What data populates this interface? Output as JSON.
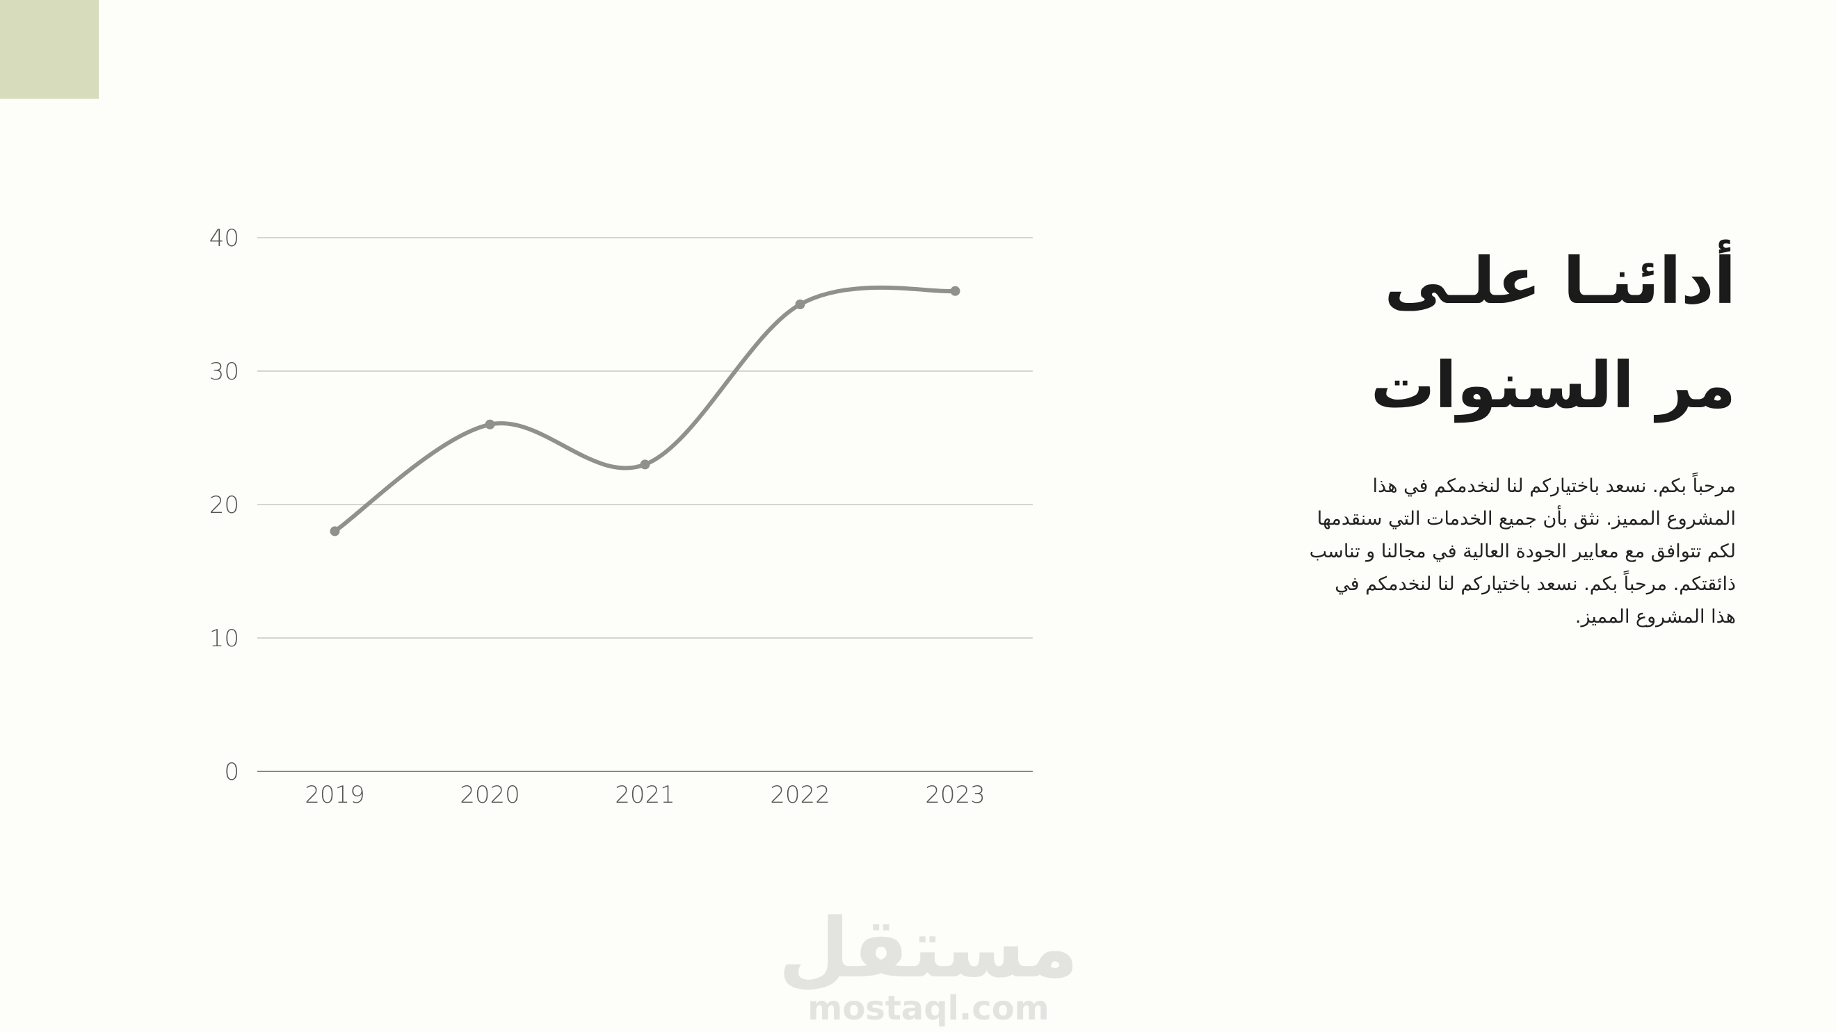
{
  "theme": {
    "accent": "#d6dcbc",
    "line_color": "#8f918a",
    "grid_color": "#d5d5d2",
    "axis_color": "#8a8a8a",
    "watermark_color": "#e3e3e0"
  },
  "slide": {
    "title_line1": "أدائنـا علـى",
    "title_line2": "مر السنوات",
    "body": "مرحباً بكم. نسعد باختياركم لنا لنخدمكم في هذا المشروع المميز. نثق بأن جميع الخدمات التي سنقدمها لكم تتوافق مع معايير الجودة العالية في مجالنا و تناسب ذائقتكم. مرحباً بكم. نسعد باختياركم لنا لنخدمكم في هذا المشروع المميز."
  },
  "watermark": {
    "arabic": "مستقل",
    "latin": "mostaql.com"
  },
  "chart_data": {
    "type": "line",
    "x": [
      "2019",
      "2020",
      "2021",
      "2022",
      "2023"
    ],
    "series": [
      {
        "values": [
          18,
          26,
          23,
          35,
          36
        ]
      }
    ],
    "ylim": [
      0,
      40
    ],
    "yticks": [
      0,
      10,
      20,
      30,
      40
    ],
    "grid": true,
    "smooth": true,
    "markers": true,
    "legend": "none",
    "title": "",
    "xlabel": "",
    "ylabel": ""
  }
}
